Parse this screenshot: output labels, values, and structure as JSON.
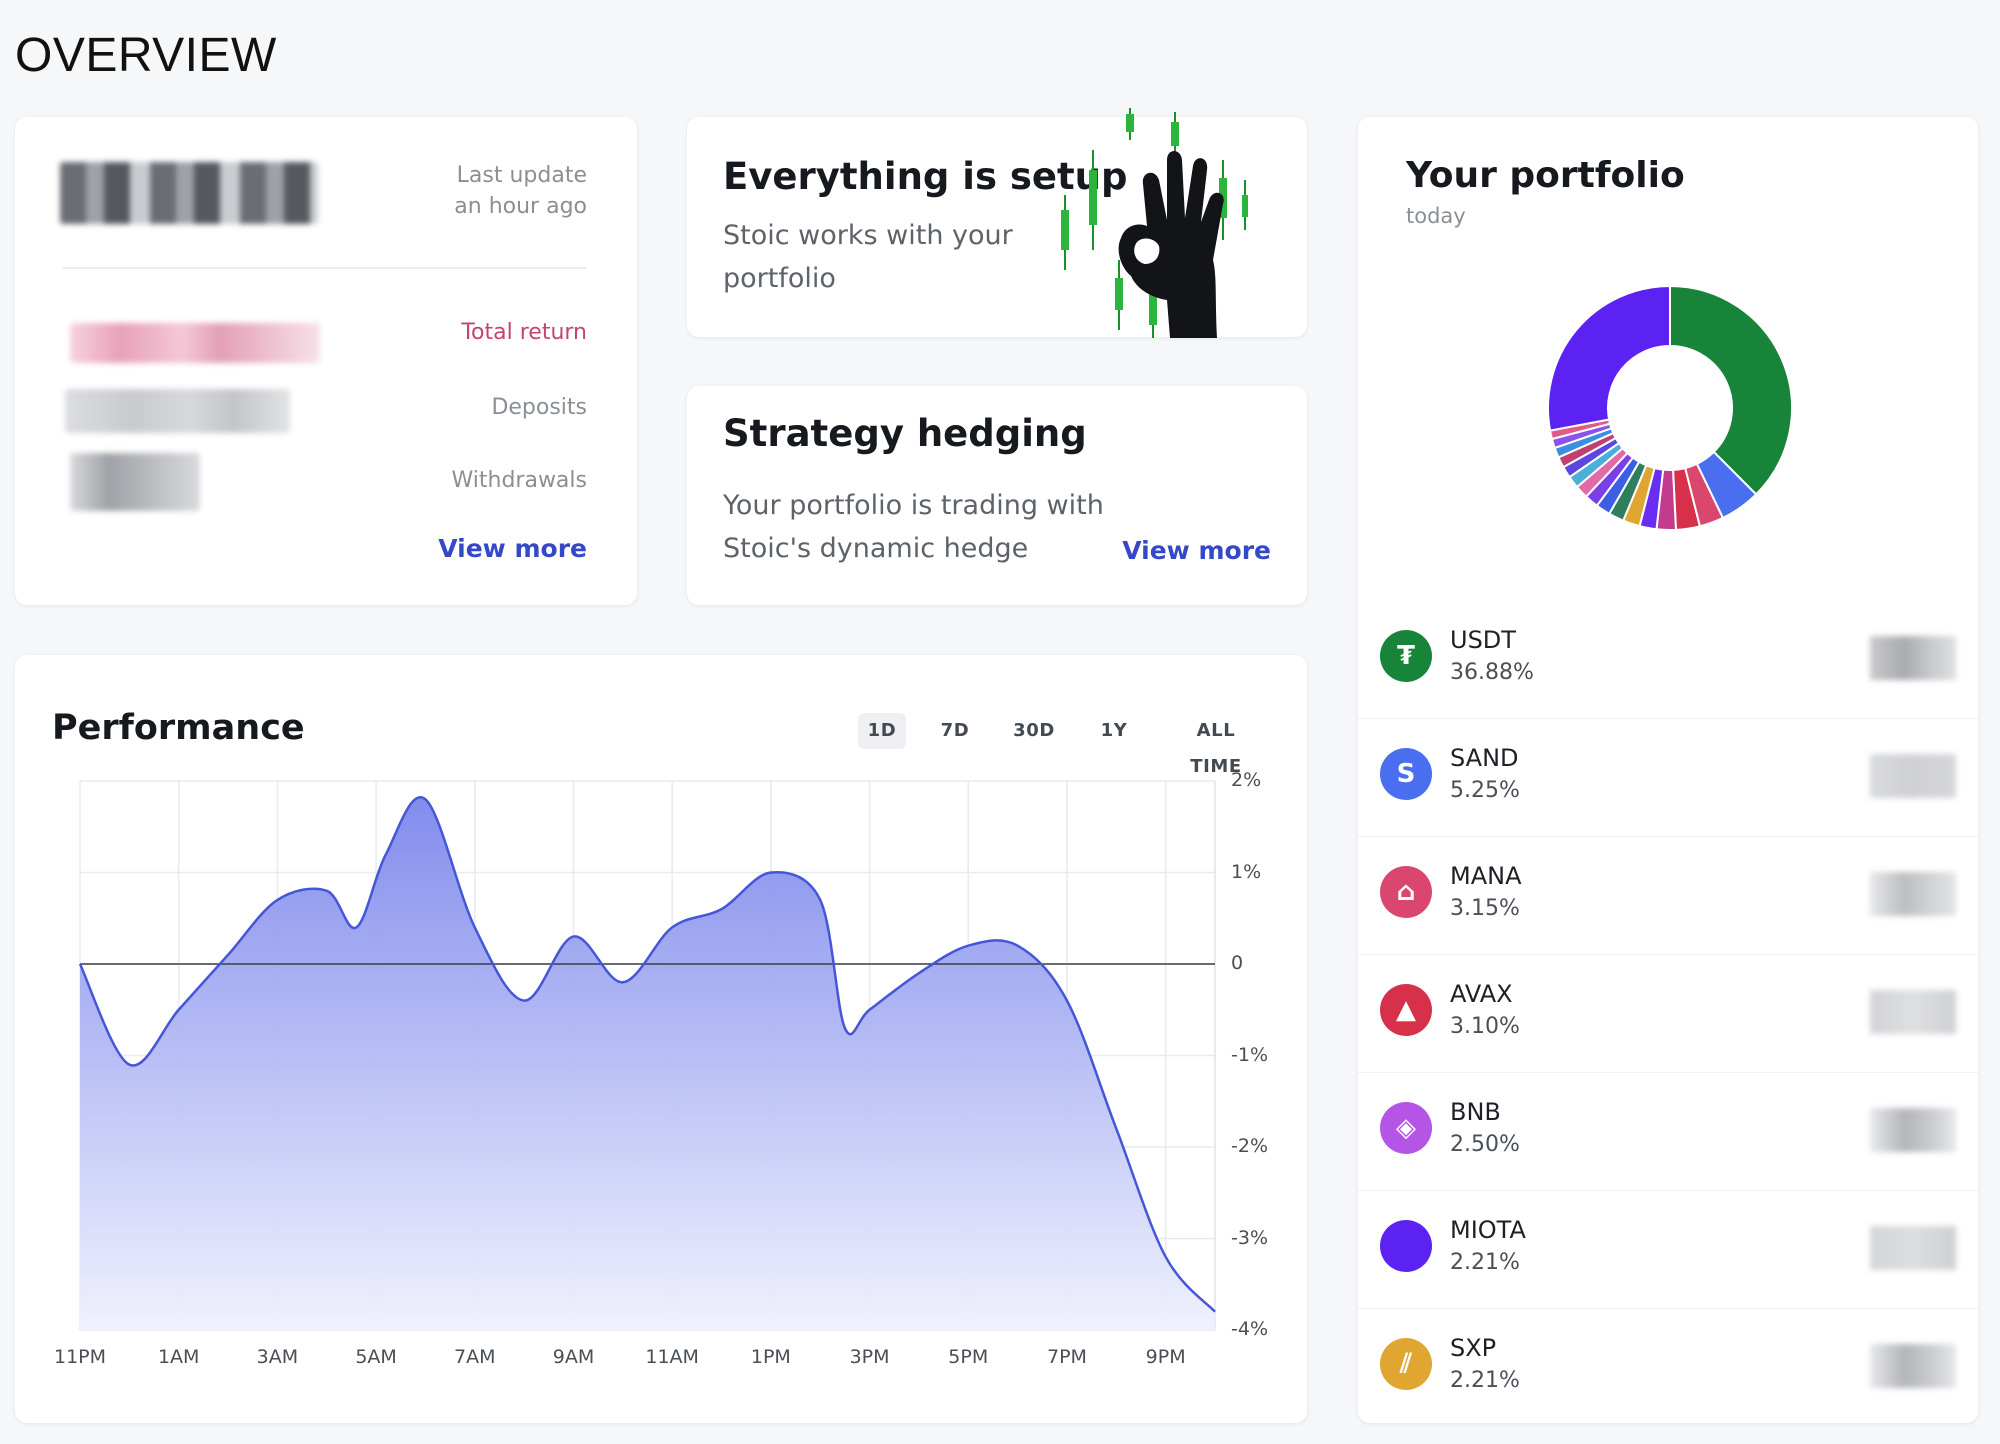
{
  "page": {
    "title": "OVERVIEW"
  },
  "summary": {
    "last_update_label": "Last update",
    "last_update_value": "an hour ago",
    "total_return_label": "Total return",
    "deposits_label": "Deposits",
    "withdrawals_label": "Withdrawals",
    "view_more": "View more"
  },
  "setup_card": {
    "title": "Everything is setup",
    "line1": "Stoic works with your",
    "line2": "portfolio",
    "illustration_icon": "ok-hand-candles-icon"
  },
  "hedging_card": {
    "title": "Strategy hedging",
    "line1": "Your portfolio is trading with",
    "line2": "Stoic's dynamic hedge",
    "view_more": "View more"
  },
  "performance": {
    "title": "Performance",
    "tabs": [
      "1D",
      "7D",
      "30D",
      "1Y",
      "ALL TIME"
    ],
    "active_tab": "1D",
    "colors": {
      "line": "#4556d6",
      "fill_top": "#7b86ec",
      "fill_bottom": "#eef0fd",
      "zero_line": "#3a3f47"
    }
  },
  "chart_data": {
    "type": "area",
    "title": "Performance",
    "xlabel": "",
    "ylabel": "",
    "x_tick_labels": [
      "11PM",
      "1AM",
      "3AM",
      "5AM",
      "7AM",
      "9AM",
      "11AM",
      "1PM",
      "3PM",
      "5PM",
      "7PM",
      "9PM"
    ],
    "y_tick_labels": [
      "2%",
      "1%",
      "0",
      "-1%",
      "-2%",
      "-3%",
      "-4%"
    ],
    "ylim": [
      -4,
      2
    ],
    "xlim": [
      0,
      23
    ],
    "grid": true,
    "series": [
      {
        "x": [
          0,
          1,
          2,
          3,
          4,
          5,
          5.6,
          6.2,
          7,
          8,
          9,
          10,
          11,
          12,
          13,
          14,
          15,
          15.5,
          16,
          17,
          18,
          19,
          20,
          21,
          22,
          23
        ],
        "values": [
          0,
          -1.1,
          -0.5,
          0.1,
          0.7,
          0.8,
          0.4,
          1.2,
          1.8,
          0.4,
          -0.4,
          0.3,
          -0.2,
          0.4,
          0.6,
          1.0,
          0.7,
          -0.7,
          -0.5,
          -0.1,
          0.2,
          0.2,
          -0.4,
          -1.8,
          -3.2,
          -3.8
        ]
      }
    ]
  },
  "portfolio": {
    "title": "Your portfolio",
    "subtitle": "today",
    "donut": {
      "slices": [
        {
          "value": 36.88,
          "color": "#18843a"
        },
        {
          "value": 5.25,
          "color": "#4a6ef0"
        },
        {
          "value": 3.15,
          "color": "#d9476e"
        },
        {
          "value": 3.1,
          "color": "#d6304a"
        },
        {
          "value": 2.5,
          "color": "#c23b8c"
        },
        {
          "value": 2.21,
          "color": "#6a2ef2"
        },
        {
          "value": 2.21,
          "color": "#e0a631"
        },
        {
          "value": 2.0,
          "color": "#2f7f5e"
        },
        {
          "value": 1.9,
          "color": "#3b5fe0"
        },
        {
          "value": 1.8,
          "color": "#7a3fe6"
        },
        {
          "value": 1.7,
          "color": "#e26aa8"
        },
        {
          "value": 1.6,
          "color": "#4ab0d8"
        },
        {
          "value": 1.5,
          "color": "#5b47e0"
        },
        {
          "value": 1.4,
          "color": "#c04070"
        },
        {
          "value": 1.3,
          "color": "#3a8fe0"
        },
        {
          "value": 1.2,
          "color": "#8a52e8"
        },
        {
          "value": 1.1,
          "color": "#e05a8a"
        },
        {
          "value": 27.49,
          "color": "#5b22f2"
        }
      ]
    },
    "assets": [
      {
        "symbol": "USDT",
        "percent": "36.88%",
        "icon": "tether-icon",
        "glyph": "₮",
        "color": "#18843a"
      },
      {
        "symbol": "SAND",
        "percent": "5.25%",
        "icon": "sand-icon",
        "glyph": "S",
        "color": "#4a6ef0"
      },
      {
        "symbol": "MANA",
        "percent": "3.15%",
        "icon": "mana-icon",
        "glyph": "⌂",
        "color": "#d9476e"
      },
      {
        "symbol": "AVAX",
        "percent": "3.10%",
        "icon": "avax-icon",
        "glyph": "▲",
        "color": "#d6304a"
      },
      {
        "symbol": "BNB",
        "percent": "2.50%",
        "icon": "bnb-icon",
        "glyph": "◈",
        "color": "#b455e6"
      },
      {
        "symbol": "MIOTA",
        "percent": "2.21%",
        "icon": "miota-icon",
        "glyph": "",
        "color": "#5b22f2"
      },
      {
        "symbol": "SXP",
        "percent": "2.21%",
        "icon": "sxp-icon",
        "glyph": "⫽",
        "color": "#e0a631"
      }
    ]
  }
}
